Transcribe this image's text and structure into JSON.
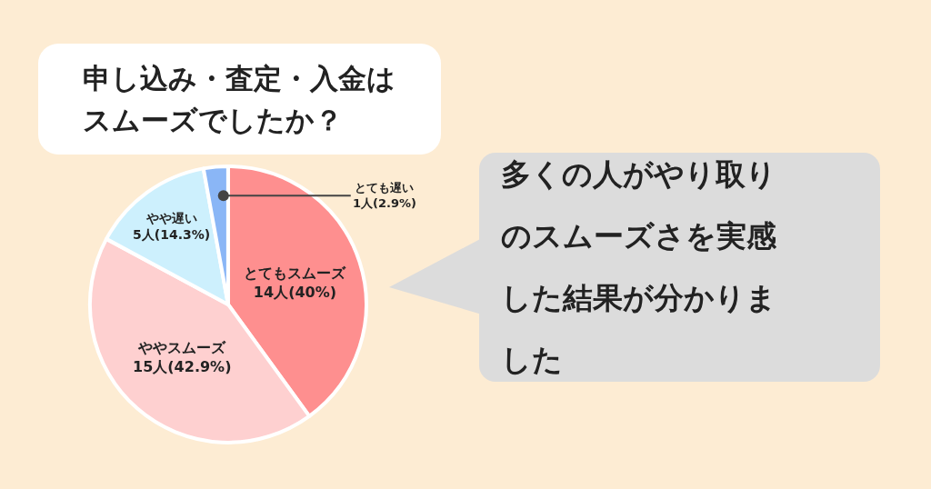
{
  "chart_data": {
    "type": "pie",
    "title": "申し込み・査定・入金はスムーズでしたか？",
    "categories": [
      "とてもスムーズ",
      "ややスムーズ",
      "やや遅い",
      "とても遅い"
    ],
    "values": [
      14,
      15,
      5,
      1
    ],
    "value_labels": [
      "14人(40%)",
      "15人(42.9%)",
      "5人(14.3%)",
      "1人(2.9%)"
    ],
    "colors": [
      "#fe8f8f",
      "#fed0d0",
      "#cdf0fd",
      "#8ab6f6"
    ],
    "legend": false,
    "annotations": [
      "多くの人がやり取りのスムーズさを実感した結果が分かりました"
    ]
  }
}
